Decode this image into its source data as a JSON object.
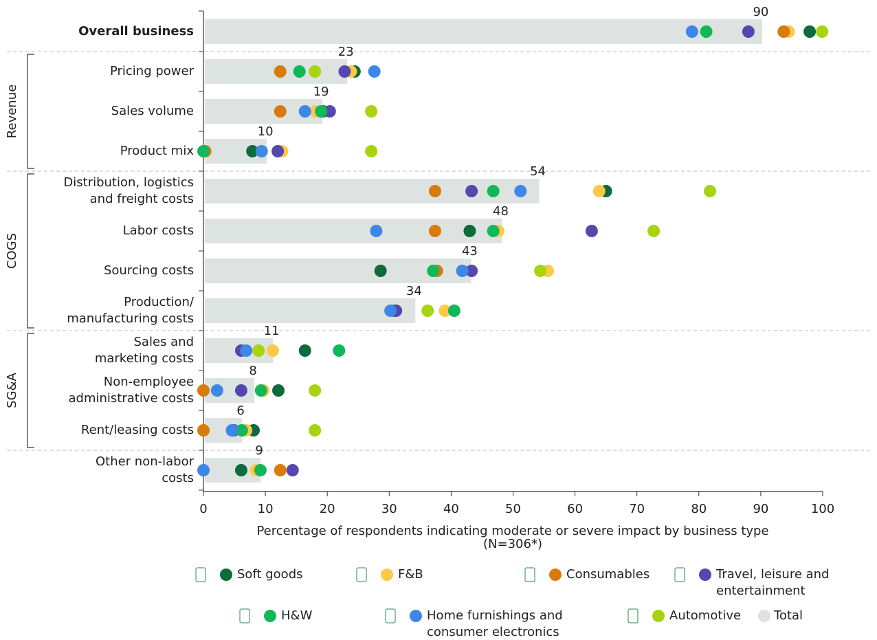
{
  "chart_data": {
    "type": "bar",
    "categories": [
      "Overall business",
      "Pricing power",
      "Sales volume",
      "Product mix",
      "Distribution, logistics\nand freight costs",
      "Labor costs",
      "Sourcing costs",
      "Production/\nmanufacturing costs",
      "Sales and\nmarketing costs",
      "Non-employee\nadministrative costs",
      "Rent/leasing costs",
      "Other non-labor\ncosts"
    ],
    "groups": [
      {
        "label": "Revenue",
        "rows": [
          1,
          3
        ]
      },
      {
        "label": "COGS",
        "rows": [
          4,
          7
        ]
      },
      {
        "label": "SG&A",
        "rows": [
          8,
          10
        ]
      }
    ],
    "total": {
      "name": "Total",
      "color": "#dde3e0",
      "values": [
        90,
        23,
        19,
        10,
        54,
        48,
        43,
        34,
        11,
        8,
        6,
        9
      ]
    },
    "series": [
      {
        "name": "Soft goods",
        "color": "#0d6b3c",
        "values": [
          97.9,
          24.4,
          19.3,
          7.9,
          65,
          43,
          28.6,
          30.9,
          16.4,
          12.1,
          8.1,
          6.1
        ]
      },
      {
        "name": "F&B",
        "color": "#ffc847",
        "values": [
          94.5,
          23.8,
          18.1,
          12.7,
          63.9,
          47.6,
          55.6,
          39,
          11.2,
          9.7,
          6.9,
          8.5
        ]
      },
      {
        "name": "Consumables",
        "color": "#d97b0b",
        "values": [
          93.7,
          12.4,
          12.4,
          0.3,
          37.4,
          37.4,
          37.7,
          30.6,
          null,
          0,
          0,
          12.4
        ]
      },
      {
        "name": "Travel, leisure and entertainment",
        "color": "#5448b0",
        "values": [
          88,
          22.8,
          20.4,
          12,
          43.3,
          62.7,
          43.3,
          31.1,
          6.1,
          6.1,
          4.9,
          14.4
        ]
      },
      {
        "name": "H&W",
        "color": "#11b85a",
        "values": [
          81.2,
          15.5,
          19,
          0,
          46.8,
          46.8,
          37.1,
          40.5,
          21.9,
          9.3,
          6.2,
          9.2
        ]
      },
      {
        "name": "Home furnishings and consumer electronics",
        "color": "#3d87e8",
        "values": [
          78.9,
          27.6,
          16.4,
          9.4,
          51.2,
          27.9,
          41.8,
          30.2,
          6.9,
          2.2,
          4.6,
          0
        ]
      },
      {
        "name": "Automotive",
        "color": "#a8d40f",
        "values": [
          99.9,
          18,
          27.1,
          27.1,
          81.8,
          72.7,
          54.4,
          36.2,
          8.9,
          18,
          18,
          null
        ]
      }
    ],
    "xlim": [
      0,
      100
    ],
    "xticks": [
      0,
      10,
      20,
      30,
      40,
      50,
      60,
      70,
      80,
      90,
      100
    ],
    "xlabel": "Percentage of respondents indicating moderate or severe impact by business type",
    "xlabel_note": "(N=306*)"
  }
}
